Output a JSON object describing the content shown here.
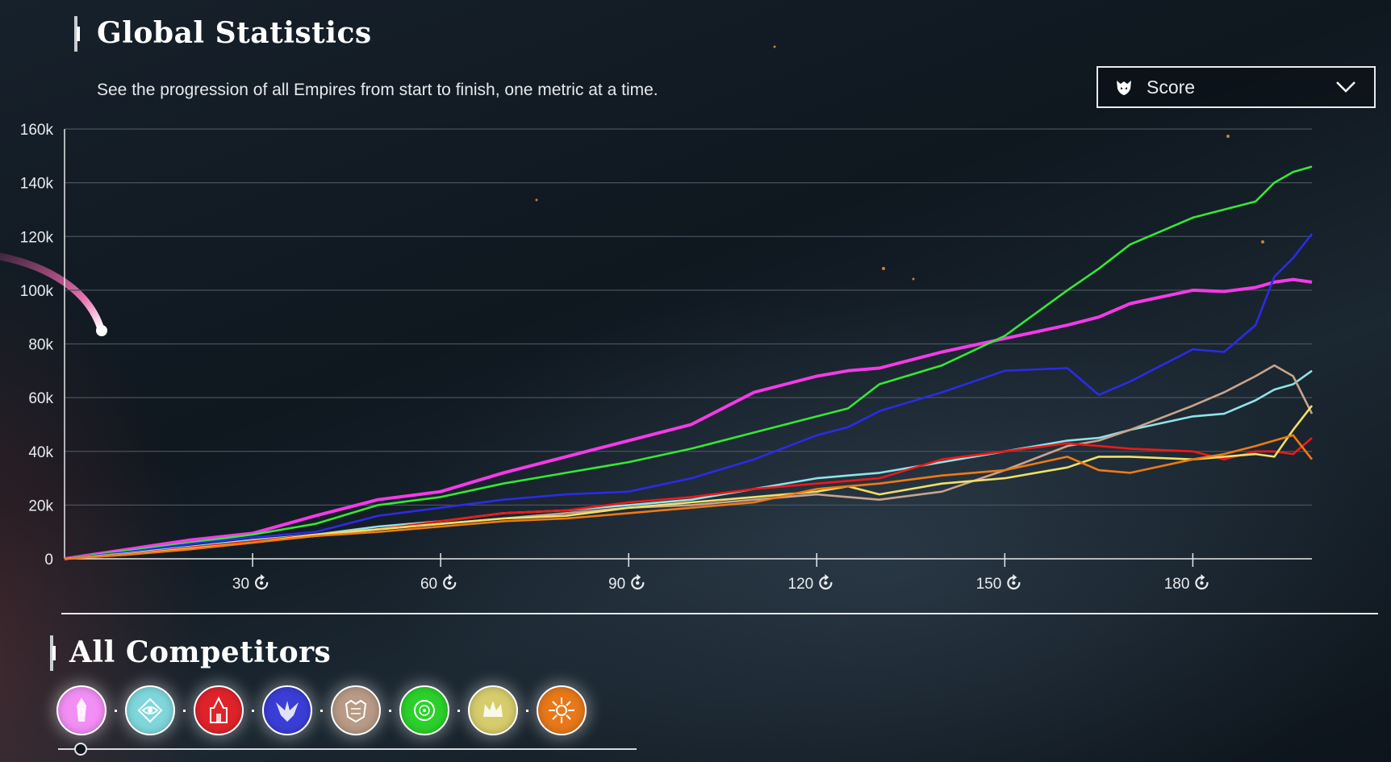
{
  "header": {
    "title": "Global Statistics",
    "subtitle": "See the progression of all Empires from start to finish, one metric at a time."
  },
  "metric_select": {
    "icon": "faction-shield-icon",
    "value": "Score"
  },
  "competitors_section": {
    "title": "All Competitors",
    "items": [
      {
        "name": "pink-empire",
        "color": "#f28ef5",
        "icon": "tower-icon"
      },
      {
        "name": "cyan-empire",
        "color": "#7fd7dc",
        "icon": "eye-diamond-icon"
      },
      {
        "name": "red-empire",
        "color": "#e0232a",
        "icon": "cathedral-icon"
      },
      {
        "name": "blue-empire",
        "color": "#3a3ed6",
        "icon": "winged-icon"
      },
      {
        "name": "tan-empire",
        "color": "#b89a86",
        "icon": "crest-icon"
      },
      {
        "name": "green-empire",
        "color": "#2bd12b",
        "icon": "orb-icon"
      },
      {
        "name": "yellow-empire",
        "color": "#d6cc6c",
        "icon": "crown-icon"
      },
      {
        "name": "orange-empire",
        "color": "#e8781a",
        "icon": "sun-icon"
      }
    ]
  },
  "colors": {
    "grid": "#46525d",
    "axis": "#e4e7ea",
    "text": "#e9ecef"
  },
  "chart_data": {
    "type": "line",
    "title": "",
    "xlabel": "",
    "ylabel": "",
    "xlim": [
      0,
      199
    ],
    "ylim": [
      0,
      160000
    ],
    "x_ticks": [
      30,
      60,
      90,
      120,
      150,
      180
    ],
    "x_tick_labels": [
      "30",
      "60",
      "90",
      "120",
      "150",
      "180"
    ],
    "y_ticks": [
      0,
      20000,
      40000,
      60000,
      80000,
      100000,
      120000,
      140000,
      160000
    ],
    "y_tick_labels": [
      "0",
      "20k",
      "40k",
      "60k",
      "80k",
      "100k",
      "120k",
      "140k",
      "160k"
    ],
    "grid": true,
    "x": [
      0,
      10,
      20,
      30,
      40,
      50,
      60,
      70,
      80,
      90,
      100,
      110,
      120,
      125,
      130,
      140,
      150,
      160,
      165,
      170,
      180,
      185,
      190,
      193,
      196,
      199
    ],
    "series": [
      {
        "color": "#f53ae8",
        "values": [
          0,
          3500,
          7000,
          9500,
          16000,
          22000,
          25000,
          32000,
          38000,
          44000,
          50000,
          62000,
          68000,
          70000,
          71000,
          77000,
          82000,
          87000,
          90000,
          95000,
          100000,
          99500,
          101000,
          103000,
          104000,
          103000
        ]
      },
      {
        "color": "#35e835",
        "values": [
          0,
          3000,
          6000,
          9000,
          13000,
          20000,
          23000,
          28000,
          32000,
          36000,
          41000,
          47000,
          53000,
          56000,
          65000,
          72000,
          83000,
          100000,
          108000,
          117000,
          127000,
          130000,
          133000,
          140000,
          144000,
          146000
        ]
      },
      {
        "color": "#2b2be8",
        "values": [
          0,
          2500,
          5500,
          8000,
          10000,
          16000,
          19000,
          22000,
          24000,
          25000,
          30000,
          37000,
          46000,
          49000,
          55000,
          62000,
          70000,
          71000,
          61000,
          66000,
          78000,
          77000,
          87000,
          105000,
          112000,
          121000
        ]
      },
      {
        "color": "#8fe3e8",
        "values": [
          0,
          2000,
          4500,
          7000,
          9000,
          12000,
          14000,
          17000,
          18000,
          20000,
          22000,
          26000,
          30000,
          31000,
          32000,
          36000,
          40000,
          44000,
          45000,
          48000,
          53000,
          54000,
          59000,
          63000,
          65000,
          70000
        ]
      },
      {
        "color": "#c9a38d",
        "values": [
          0,
          1800,
          4000,
          6500,
          8500,
          11000,
          13000,
          15000,
          17000,
          19000,
          20000,
          22000,
          24000,
          23000,
          22000,
          25000,
          33000,
          42000,
          44000,
          48000,
          57000,
          62000,
          68000,
          72000,
          68000,
          54000
        ]
      },
      {
        "color": "#f01818",
        "values": [
          0,
          1700,
          4200,
          6500,
          9000,
          11000,
          14000,
          17000,
          18000,
          21000,
          23000,
          26000,
          28000,
          29000,
          30000,
          37000,
          40000,
          43000,
          42000,
          41000,
          40000,
          37000,
          40000,
          40000,
          39000,
          45000
        ]
      },
      {
        "color": "#f0e069",
        "values": [
          0,
          1600,
          3800,
          6000,
          9000,
          11000,
          13000,
          15000,
          16000,
          19000,
          21000,
          23000,
          25000,
          27000,
          24000,
          28000,
          30000,
          34000,
          38000,
          38000,
          37000,
          38000,
          39000,
          38000,
          48000,
          57000
        ]
      },
      {
        "color": "#f07a12",
        "values": [
          0,
          1500,
          3500,
          6000,
          8500,
          10000,
          12000,
          14000,
          15000,
          17000,
          19000,
          21000,
          26000,
          27000,
          28000,
          31000,
          33000,
          38000,
          33000,
          32000,
          37000,
          39000,
          42000,
          44000,
          46000,
          37000
        ]
      }
    ]
  }
}
